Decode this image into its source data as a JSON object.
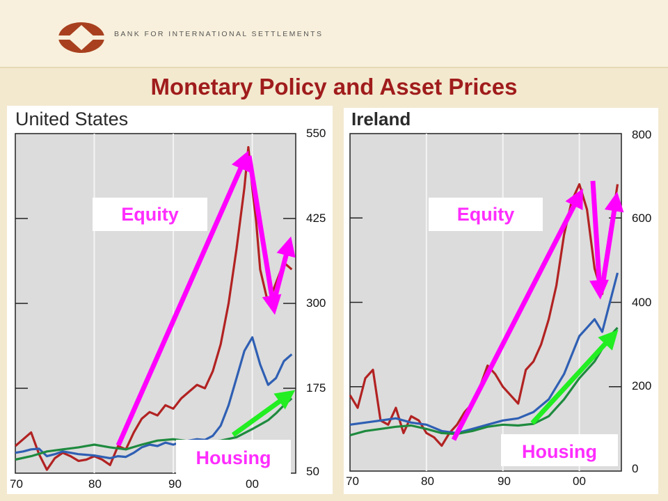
{
  "header": {
    "org_name": "BANK FOR INTERNATIONAL SETTLEMENTS"
  },
  "slide": {
    "title": "Monetary Policy and Asset Prices"
  },
  "colors": {
    "equity": "#b22222",
    "housing": "#1e8a3e",
    "third_series": "#2f5fb3",
    "equity_arrow": "#ff00ff",
    "housing_arrow": "#22ee22",
    "title": "#a01c1c"
  },
  "annotations": {
    "equity": "Equity",
    "housing": "Housing"
  },
  "chart_data": [
    {
      "type": "line",
      "title": "United States",
      "yticks": [
        "550",
        "425",
        "300",
        "175",
        "50"
      ],
      "ylim": [
        50,
        550
      ],
      "xticks": [
        "70",
        "80",
        "90",
        "00"
      ],
      "xlim": [
        1970,
        2005.5
      ],
      "series": [
        {
          "color": "#b22222",
          "x": [
            1970,
            1971,
            1972,
            1973,
            1974,
            1975,
            1976,
            1977,
            1978,
            1979,
            1980,
            1981,
            1982,
            1983,
            1984,
            1985,
            1986,
            1987,
            1988,
            1989,
            1990,
            1991,
            1992,
            1993,
            1994,
            1995,
            1996,
            1997,
            1998,
            1999,
            1999.5,
            2000,
            2000.5,
            2001,
            2002,
            2003,
            2004,
            2005
          ],
          "y": [
            90,
            100,
            110,
            78,
            55,
            72,
            80,
            75,
            68,
            70,
            75,
            70,
            62,
            90,
            85,
            110,
            130,
            140,
            135,
            150,
            145,
            160,
            170,
            180,
            175,
            200,
            240,
            300,
            380,
            470,
            530,
            470,
            420,
            350,
            300,
            330,
            360,
            350
          ]
        },
        {
          "color": "#2f5fb3",
          "x": [
            1970,
            1971,
            1972,
            1973,
            1974,
            1975,
            1976,
            1977,
            1978,
            1979,
            1980,
            1981,
            1982,
            1983,
            1984,
            1985,
            1986,
            1987,
            1988,
            1989,
            1990,
            1991,
            1992,
            1993,
            1994,
            1995,
            1996,
            1997,
            1998,
            1999,
            2000,
            2001,
            2002,
            2003,
            2004,
            2005
          ],
          "y": [
            80,
            82,
            85,
            86,
            75,
            78,
            82,
            80,
            78,
            77,
            76,
            74,
            72,
            75,
            74,
            80,
            88,
            92,
            90,
            95,
            92,
            96,
            98,
            100,
            99,
            105,
            120,
            150,
            190,
            230,
            250,
            210,
            180,
            190,
            215,
            225
          ]
        },
        {
          "color": "#1e8a3e",
          "x": [
            1970,
            1972,
            1974,
            1976,
            1978,
            1980,
            1982,
            1984,
            1986,
            1988,
            1990,
            1992,
            1994,
            1996,
            1998,
            2000,
            2002,
            2003,
            2004,
            2005
          ],
          "y": [
            70,
            75,
            82,
            85,
            88,
            92,
            88,
            85,
            92,
            98,
            100,
            97,
            96,
            98,
            103,
            115,
            128,
            138,
            150,
            160
          ]
        }
      ]
    },
    {
      "type": "line",
      "title": "Ireland",
      "yticks": [
        "800",
        "600",
        "400",
        "200",
        "0"
      ],
      "ylim": [
        0,
        800
      ],
      "xticks": [
        "70",
        "80",
        "90",
        "00"
      ],
      "xlim": [
        1970,
        2005.5
      ],
      "series": [
        {
          "color": "#b22222",
          "x": [
            1970,
            1971,
            1972,
            1973,
            1974,
            1975,
            1976,
            1977,
            1978,
            1979,
            1980,
            1981,
            1982,
            1983,
            1984,
            1985,
            1986,
            1987,
            1988,
            1989,
            1990,
            1991,
            1992,
            1993,
            1994,
            1995,
            1996,
            1997,
            1998,
            1999,
            2000,
            2001,
            2002,
            2003,
            2004,
            2005
          ],
          "y": [
            180,
            150,
            220,
            240,
            120,
            110,
            150,
            90,
            130,
            120,
            90,
            80,
            60,
            90,
            110,
            140,
            160,
            200,
            250,
            230,
            200,
            180,
            160,
            240,
            260,
            300,
            360,
            440,
            560,
            640,
            680,
            620,
            480,
            420,
            560,
            680
          ]
        },
        {
          "color": "#2f5fb3",
          "x": [
            1970,
            1972,
            1974,
            1976,
            1978,
            1980,
            1982,
            1984,
            1986,
            1988,
            1990,
            1992,
            1994,
            1996,
            1998,
            2000,
            2001,
            2002,
            2003,
            2004,
            2005
          ],
          "y": [
            110,
            115,
            120,
            125,
            115,
            110,
            95,
            90,
            100,
            110,
            120,
            125,
            140,
            170,
            230,
            320,
            340,
            360,
            330,
            400,
            470
          ]
        },
        {
          "color": "#1e8a3e",
          "x": [
            1970,
            1972,
            1974,
            1976,
            1978,
            1980,
            1982,
            1984,
            1986,
            1988,
            1990,
            1992,
            1994,
            1996,
            1998,
            2000,
            2002,
            2004,
            2005
          ],
          "y": [
            85,
            95,
            100,
            105,
            108,
            100,
            90,
            88,
            95,
            105,
            110,
            108,
            112,
            130,
            170,
            220,
            260,
            320,
            340
          ]
        }
      ]
    }
  ]
}
